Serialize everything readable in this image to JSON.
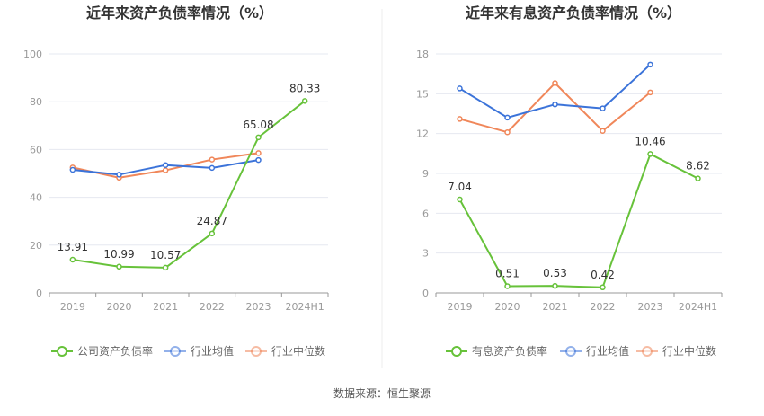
{
  "source": "数据来源：恒生聚源",
  "colors": {
    "company": "#67c23a",
    "avg": "#3b73d9",
    "median": "#f0875a",
    "grid": "#e6e8f0",
    "axis": "#999999"
  },
  "chart_data": [
    {
      "type": "line",
      "title": "近年来资产负债率情况（%）",
      "categories": [
        "2019",
        "2020",
        "2021",
        "2022",
        "2023",
        "2024H1"
      ],
      "ylim": [
        0,
        100
      ],
      "yticks": [
        0,
        20,
        40,
        60,
        80,
        100
      ],
      "grid": true,
      "legend_position": "bottom",
      "series": [
        {
          "name": "公司资产负债率",
          "color": "#67c23a",
          "values": [
            13.91,
            10.99,
            10.57,
            24.87,
            65.08,
            80.33
          ],
          "labels": [
            "13.91",
            "10.99",
            "10.57",
            "24.87",
            "65.08",
            "80.33"
          ]
        },
        {
          "name": "行业均值",
          "color": "#3b73d9",
          "values": [
            51.5,
            49.5,
            53.5,
            52.3,
            55.6,
            null
          ]
        },
        {
          "name": "行业中位数",
          "color": "#f0875a",
          "values": [
            52.5,
            48.2,
            51.3,
            55.8,
            58.5,
            null
          ]
        }
      ]
    },
    {
      "type": "line",
      "title": "近年来有息资产负债率情况（%）",
      "categories": [
        "2019",
        "2020",
        "2021",
        "2022",
        "2023",
        "2024H1"
      ],
      "ylim": [
        0,
        18
      ],
      "yticks": [
        0,
        3,
        6,
        9,
        12,
        15,
        18
      ],
      "grid": true,
      "legend_position": "bottom",
      "series": [
        {
          "name": "有息资产负债率",
          "color": "#67c23a",
          "values": [
            7.04,
            0.51,
            0.53,
            0.42,
            10.46,
            8.62
          ],
          "labels": [
            "7.04",
            "0.51",
            "0.53",
            "0.42",
            "10.46",
            "8.62"
          ]
        },
        {
          "name": "行业均值",
          "color": "#3b73d9",
          "values": [
            15.4,
            13.2,
            14.2,
            13.9,
            17.2,
            null
          ]
        },
        {
          "name": "行业中位数",
          "color": "#f0875a",
          "values": [
            13.1,
            12.1,
            15.8,
            12.2,
            15.1,
            null
          ]
        }
      ]
    }
  ]
}
